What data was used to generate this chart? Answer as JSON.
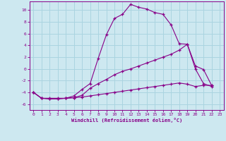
{
  "xlabel": "Windchill (Refroidissement éolien,°C)",
  "xlim": [
    -0.5,
    23.5
  ],
  "ylim": [
    -7,
    11.5
  ],
  "xticks": [
    0,
    1,
    2,
    3,
    4,
    5,
    6,
    7,
    8,
    9,
    10,
    11,
    12,
    13,
    14,
    15,
    16,
    17,
    18,
    19,
    20,
    21,
    22,
    23
  ],
  "yticks": [
    -6,
    -4,
    -2,
    0,
    2,
    4,
    6,
    8,
    10
  ],
  "background_color": "#cde8f0",
  "line_color": "#880088",
  "grid_color": "#aad4e0",
  "lines": [
    {
      "x": [
        0,
        1,
        2,
        3,
        4,
        5,
        6,
        7,
        8,
        9,
        10,
        11,
        12,
        13,
        14,
        15,
        16,
        17,
        18,
        19,
        20,
        21,
        22
      ],
      "y": [
        -4,
        -5,
        -5.1,
        -5.1,
        -5.0,
        -4.6,
        -3.5,
        -2.5,
        1.8,
        5.8,
        8.6,
        9.3,
        11.0,
        10.5,
        10.2,
        9.6,
        9.3,
        7.5,
        4.3,
        4.2,
        0.5,
        -0.1,
        -2.8
      ]
    },
    {
      "x": [
        0,
        1,
        2,
        3,
        4,
        5,
        6,
        7,
        8,
        9,
        10,
        11,
        12,
        13,
        14,
        15,
        16,
        17,
        18,
        19,
        20,
        21,
        22
      ],
      "y": [
        -4,
        -5,
        -5.0,
        -5.0,
        -5.0,
        -4.9,
        -4.5,
        -3.3,
        -2.5,
        -1.8,
        -1.0,
        -0.4,
        0.0,
        0.5,
        1.0,
        1.5,
        2.0,
        2.5,
        3.2,
        4.2,
        0.0,
        -2.5,
        -3.0
      ]
    },
    {
      "x": [
        0,
        1,
        2,
        3,
        4,
        5,
        6,
        7,
        8,
        9,
        10,
        11,
        12,
        13,
        14,
        15,
        16,
        17,
        18,
        19,
        20,
        21,
        22
      ],
      "y": [
        -4,
        -5,
        -5.1,
        -5.1,
        -5.0,
        -4.9,
        -4.8,
        -4.6,
        -4.4,
        -4.2,
        -4.0,
        -3.8,
        -3.6,
        -3.4,
        -3.2,
        -3.0,
        -2.8,
        -2.6,
        -2.4,
        -2.6,
        -3.0,
        -2.8,
        -2.8
      ]
    }
  ]
}
